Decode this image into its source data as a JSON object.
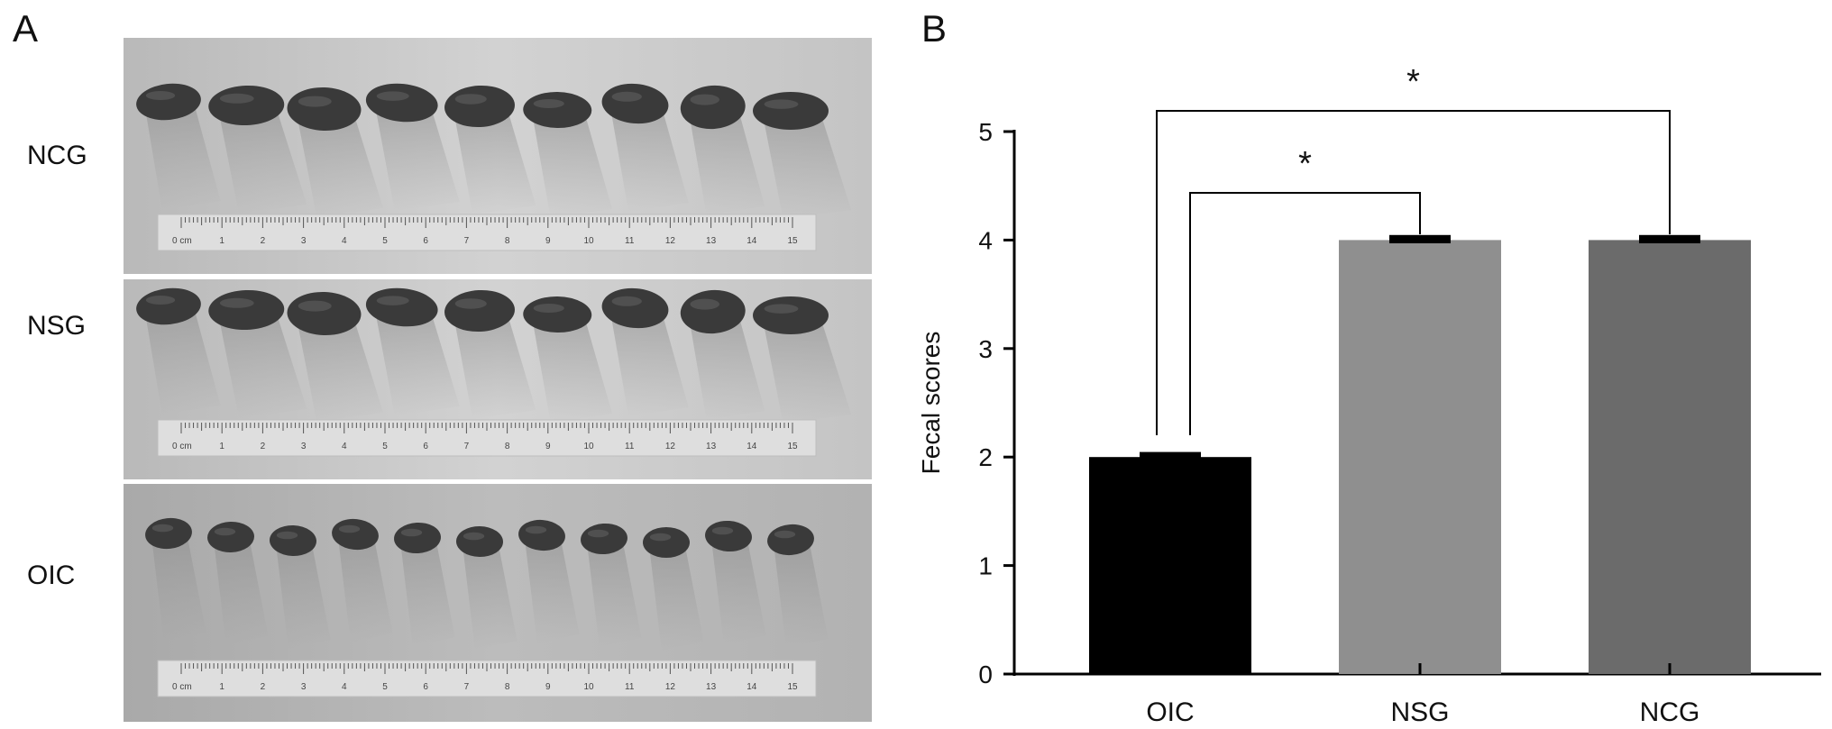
{
  "panels": {
    "a": {
      "letter": "A"
    },
    "b": {
      "letter": "B"
    }
  },
  "photos": {
    "ruler": {
      "unit": "0 cm",
      "ticks": [
        "1",
        "2",
        "3",
        "4",
        "5",
        "6",
        "7",
        "8",
        "9",
        "10",
        "11",
        "12",
        "13",
        "14",
        "15"
      ]
    },
    "rows": [
      {
        "label": "NCG",
        "pellet_count": 9
      },
      {
        "label": "NSG",
        "pellet_count": 9
      },
      {
        "label": "OIC",
        "pellet_count": 11
      }
    ]
  },
  "chart_data": {
    "type": "bar",
    "categories": [
      "OIC",
      "NSG",
      "NCG"
    ],
    "values": [
      2,
      4,
      4
    ],
    "errors": [
      0.03,
      0.03,
      0.03
    ],
    "bar_colors": [
      "#000000",
      "#8f8f8f",
      "#6b6b6b"
    ],
    "ylabel": "Fecal scores",
    "xlabel": "",
    "ylim": [
      0,
      5
    ],
    "yticks": [
      "0",
      "1",
      "2",
      "3",
      "4",
      "5"
    ],
    "grid": false,
    "significance": [
      {
        "from": "OIC",
        "to": "NSG",
        "label": "*"
      },
      {
        "from": "OIC",
        "to": "NCG",
        "label": "*"
      }
    ]
  }
}
